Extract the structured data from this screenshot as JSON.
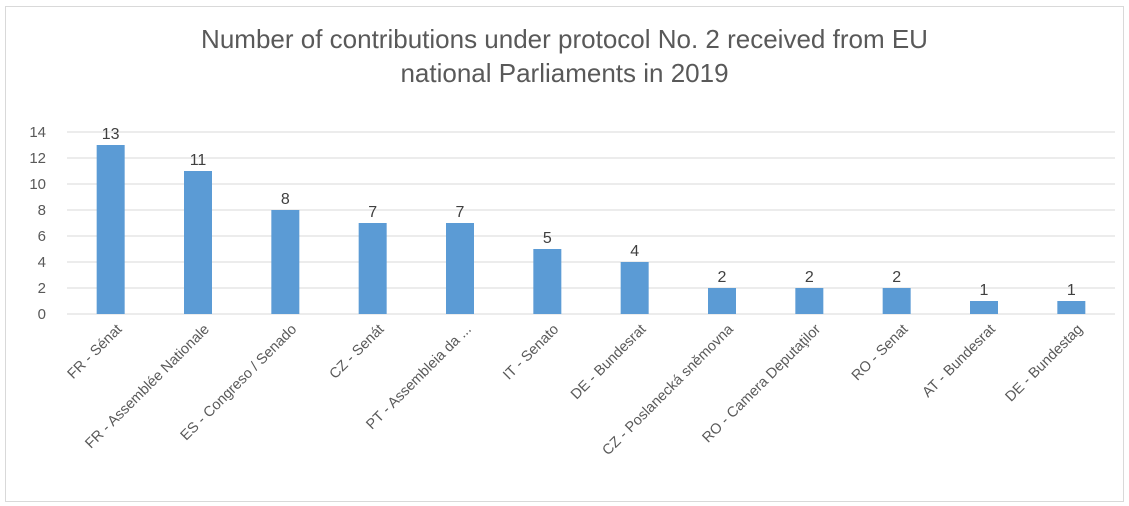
{
  "chart_data": {
    "type": "bar",
    "title": "Number of contributions under protocol No. 2 received from EU\nnational Parliaments in 2019",
    "xlabel": "",
    "ylabel": "",
    "ylim": [
      0,
      14
    ],
    "yticks": [
      0,
      2,
      4,
      6,
      8,
      10,
      12,
      14
    ],
    "grid": true,
    "legend": "none",
    "bar_color": "#5b9bd5",
    "categories": [
      "FR - Sénat",
      "FR - Assemblée Nationale",
      "ES - Congreso / Senado",
      "CZ - Senát",
      "PT - Assembleia da ...",
      "IT - Senato",
      "DE - Bundesrat",
      "CZ - Poslanecká sněmovna",
      "RO - Camera Deputaţilor",
      "RO - Senat",
      "AT - Bundesrat",
      "DE - Bundestag"
    ],
    "values": [
      13,
      11,
      8,
      7,
      7,
      5,
      4,
      2,
      2,
      2,
      1,
      1
    ],
    "value_labels": [
      "13",
      "11",
      "8",
      "7",
      "7",
      "5",
      "4",
      "2",
      "2",
      "2",
      "1",
      "1"
    ],
    "ytick_labels": [
      "0",
      "2",
      "4",
      "6",
      "8",
      "10",
      "12",
      "14"
    ]
  }
}
